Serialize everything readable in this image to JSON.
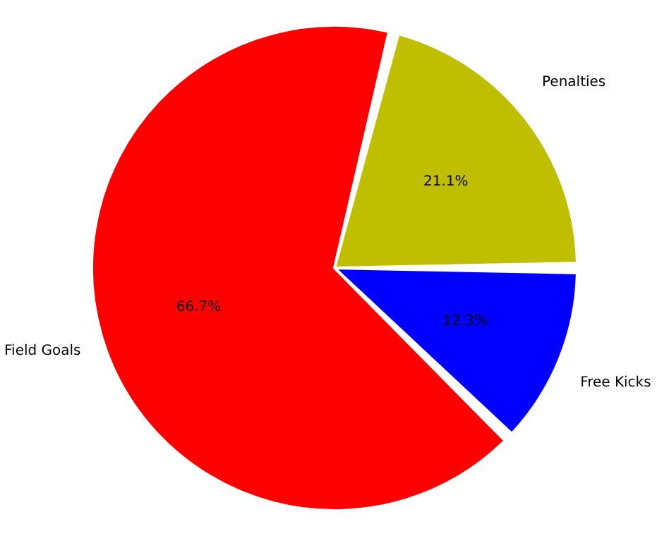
{
  "chart_data": {
    "type": "pie",
    "categories": [
      "Penalties",
      "Free Kicks",
      "Field Goals"
    ],
    "values": [
      21.1,
      12.3,
      66.7
    ],
    "value_labels": [
      "21.1%",
      "12.3%",
      "66.7%"
    ],
    "colors": [
      "#bfbf00",
      "#0000ff",
      "#ff0000"
    ]
  }
}
